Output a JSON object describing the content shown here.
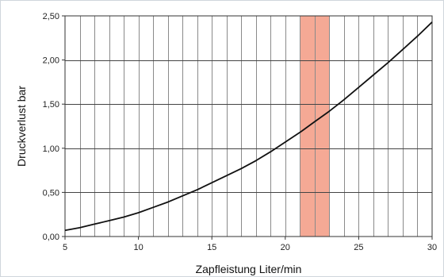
{
  "chart_data": {
    "type": "line",
    "title": "",
    "xlabel": "Zapfleistung Liter/min",
    "ylabel": "Druckverlust bar",
    "xlim": [
      5,
      30
    ],
    "ylim": [
      0,
      2.5
    ],
    "x_ticks": [
      "5",
      "10",
      "15",
      "20",
      "25",
      "30"
    ],
    "y_ticks": [
      "0,00",
      "0,50",
      "1,00",
      "1,50",
      "2,00",
      "2,50"
    ],
    "x_tick_values": [
      5,
      10,
      15,
      20,
      25,
      30
    ],
    "y_tick_values": [
      0,
      0.5,
      1.0,
      1.5,
      2.0,
      2.5
    ],
    "grid": {
      "vertical_every": 1,
      "horizontal_every": 0.5
    },
    "legend": "none",
    "highlight_band": {
      "x_start": 21,
      "x_end": 23,
      "color": "#f4a08a"
    },
    "series": [
      {
        "color": "#111111",
        "x": [
          5,
          6,
          7,
          8,
          9,
          10,
          11,
          12,
          13,
          14,
          15,
          16,
          17,
          18,
          19,
          20,
          21,
          22,
          23,
          24,
          25,
          26,
          27,
          28,
          29,
          30
        ],
        "y": [
          0.07,
          0.1,
          0.14,
          0.18,
          0.22,
          0.27,
          0.33,
          0.39,
          0.46,
          0.53,
          0.61,
          0.69,
          0.77,
          0.86,
          0.96,
          1.07,
          1.18,
          1.3,
          1.42,
          1.55,
          1.69,
          1.83,
          1.97,
          2.12,
          2.27,
          2.43
        ]
      }
    ]
  }
}
